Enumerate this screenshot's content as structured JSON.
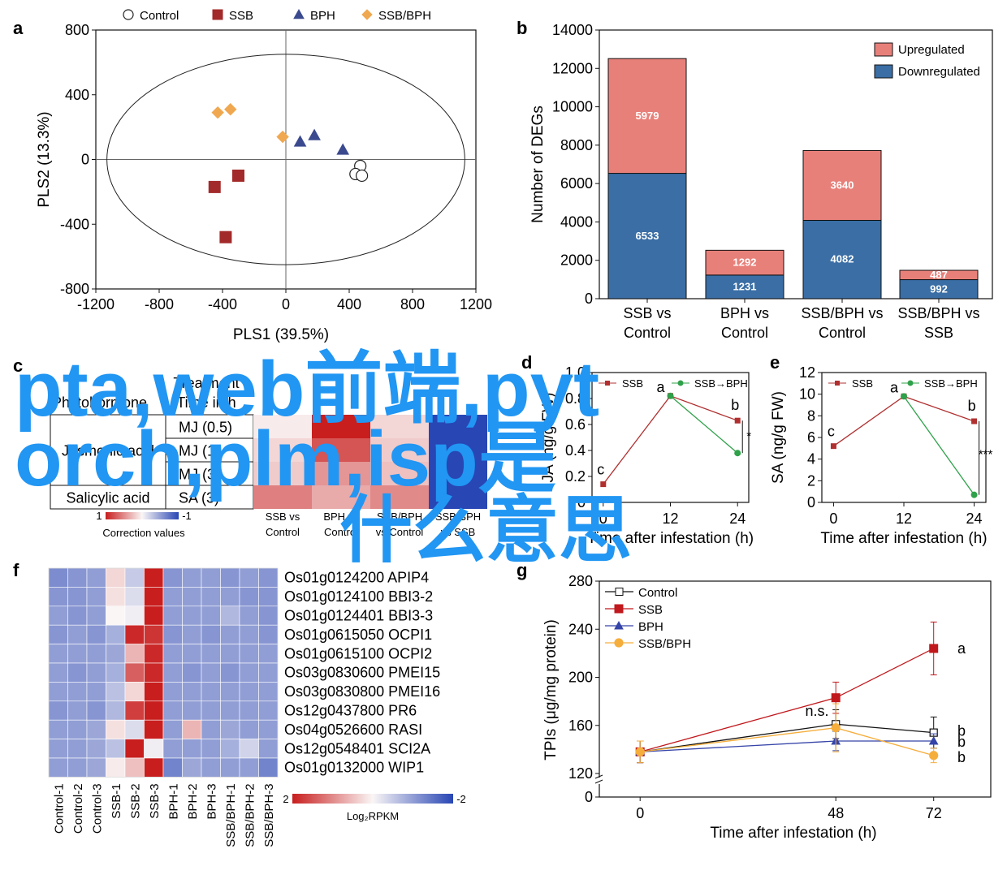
{
  "watermark": {
    "line1": "pta,web前端,pyt",
    "line2": "orch,plm,isp是",
    "line3": "什么意思"
  },
  "chart_data": [
    {
      "panel": "a",
      "type": "scatter",
      "xlabel": "PLS1 (39.5%)",
      "ylabel": "PLS2 (13.3%)",
      "xlim": [
        -1200,
        1200
      ],
      "ylim": [
        -800,
        800
      ],
      "xticks": [
        "-1200",
        "-800",
        "-400",
        "0",
        "400",
        "800",
        "1200"
      ],
      "yticks": [
        "800",
        "400",
        "0",
        "-400",
        "-800"
      ],
      "legend": [
        "Control",
        "SSB",
        "BPH",
        "SSB/BPH"
      ],
      "legend_position": "top",
      "colors": {
        "Control": "#ffffff",
        "SSB": "#a32a2a",
        "BPH": "#3b4a8f",
        "SSB/BPH": "#f0a850"
      },
      "series": [
        {
          "name": "Control",
          "marker": "circle",
          "points": [
            [
              470,
              -40
            ],
            [
              440,
              -90
            ],
            [
              480,
              -100
            ]
          ]
        },
        {
          "name": "SSB",
          "marker": "square",
          "points": [
            [
              -450,
              -170
            ],
            [
              -300,
              -100
            ],
            [
              -380,
              -480
            ]
          ]
        },
        {
          "name": "BPH",
          "marker": "triangle",
          "points": [
            [
              90,
              110
            ],
            [
              180,
              150
            ],
            [
              360,
              60
            ]
          ]
        },
        {
          "name": "SSB/BPH",
          "marker": "diamond",
          "points": [
            [
              -430,
              290
            ],
            [
              -350,
              310
            ],
            [
              -20,
              140
            ]
          ]
        }
      ]
    },
    {
      "panel": "b",
      "type": "bar",
      "stacked": true,
      "ylabel": "Number of DEGs",
      "ylim": [
        0,
        14000
      ],
      "yticks": [
        "0",
        "2000",
        "4000",
        "6000",
        "8000",
        "10000",
        "12000",
        "14000"
      ],
      "categories": [
        [
          "SSB vs",
          "Control"
        ],
        [
          "BPH vs",
          "Control"
        ],
        [
          "SSB/BPH vs",
          "Control"
        ],
        [
          "SSB/BPH vs",
          "SSB"
        ]
      ],
      "legend_position": "top-right",
      "series": [
        {
          "name": "Downregulated",
          "color": "#3a6ea5",
          "values": [
            6533,
            1231,
            4082,
            992
          ],
          "labels": [
            "6533",
            "1231",
            "4082",
            "992"
          ]
        },
        {
          "name": "Upregulated",
          "color": "#e8807a",
          "values": [
            5979,
            1292,
            3640,
            487
          ],
          "labels": [
            "5979",
            "1292",
            "3640",
            "487"
          ]
        }
      ]
    },
    {
      "panel": "c",
      "type": "heatmap",
      "header_col1": "Phytohormone",
      "header_col2": [
        "Treatment",
        "Time in h"
      ],
      "rows": [
        {
          "hormone": "Jasmonic acid",
          "name": "MJ (0.5)"
        },
        {
          "hormone": "",
          "name": "MJ (1)"
        },
        {
          "hormone": "",
          "name": "MJ (3)"
        },
        {
          "hormone": "Salicylic acid",
          "name": "SA (3)"
        }
      ],
      "columns": [
        [
          "SSB vs",
          "Control"
        ],
        [
          "BPH vs",
          "Control"
        ],
        [
          "SSB/BPH",
          "vs Control"
        ],
        [
          "SSB/BPH",
          "vs SSB"
        ]
      ],
      "values": [
        [
          0.05,
          1.0,
          0.15,
          -1.0
        ],
        [
          0.15,
          0.75,
          0.2,
          -1.0
        ],
        [
          0.2,
          0.45,
          0.25,
          -1.0
        ],
        [
          0.55,
          0.35,
          0.5,
          -1.0
        ]
      ],
      "colorbar": {
        "min_label": "1",
        "max_label": "-1",
        "title": "Correction values"
      }
    },
    {
      "panel": "d",
      "type": "line",
      "ylabel": "JA (ng/g FW)",
      "xlabel": "Time after infestation (h)",
      "xticks": [
        "0",
        "12",
        "24"
      ],
      "yticks": [
        "0",
        "0.2",
        "0.4",
        "0.6",
        "0.8",
        "1.0"
      ],
      "ylim": [
        0,
        1.0
      ],
      "legend": [
        "SSB",
        "SSB→BPH"
      ],
      "series": [
        {
          "name": "SSB",
          "color": "#b03030",
          "x": [
            0,
            12,
            24
          ],
          "y": [
            0.14,
            0.82,
            0.63
          ]
        },
        {
          "name": "SSB→BPH",
          "color": "#2fa14a",
          "x": [
            12,
            24
          ],
          "y": [
            0.82,
            0.38
          ]
        }
      ],
      "letters": [
        "c",
        "a",
        "b"
      ],
      "significance": "*"
    },
    {
      "panel": "e",
      "type": "line",
      "ylabel": "SA (ng/g FW)",
      "xlabel": "Time after infestation (h)",
      "xticks": [
        "0",
        "12",
        "24"
      ],
      "yticks": [
        "0",
        "2",
        "4",
        "6",
        "8",
        "10",
        "12"
      ],
      "ylim": [
        0,
        12
      ],
      "legend": [
        "SSB",
        "SSB→BPH"
      ],
      "series": [
        {
          "name": "SSB",
          "color": "#b03030",
          "x": [
            0,
            12,
            24
          ],
          "y": [
            5.2,
            9.8,
            7.5
          ]
        },
        {
          "name": "SSB→BPH",
          "color": "#2fa14a",
          "x": [
            12,
            24
          ],
          "y": [
            9.8,
            0.7
          ]
        }
      ],
      "letters": [
        "c",
        "a",
        "b"
      ],
      "significance": "***"
    },
    {
      "panel": "f",
      "type": "heatmap",
      "genes": [
        "Os01g0124200 APIP4",
        "Os01g0124100 BBI3-2",
        "Os01g0124401 BBI3-3",
        "Os01g0615050 OCPI1",
        "Os01g0615100 OCPI2",
        "Os03g0830600 PMEI15",
        "Os03g0830800 PMEI16",
        "Os12g0437800 PR6",
        "Os04g0526600 RASI",
        "Os12g0548401 SCI2A",
        "Os01g0132000 WIP1"
      ],
      "samples": [
        "Control-1",
        "Control-2",
        "Control-3",
        "SSB-1",
        "SSB-2",
        "SSB-3",
        "BPH-1",
        "BPH-2",
        "BPH-3",
        "SSB/BPH-1",
        "SSB/BPH-2",
        "SSB/BPH-3"
      ],
      "values": [
        [
          -1.2,
          -1.1,
          -1.0,
          0.3,
          -0.5,
          2.0,
          -1.1,
          -1.0,
          -1.0,
          -1.1,
          -1.0,
          -1.1
        ],
        [
          -1.1,
          -1.1,
          -1.0,
          0.2,
          -0.3,
          2.0,
          -1.0,
          -1.0,
          -1.0,
          -1.0,
          -1.1,
          -1.1
        ],
        [
          -1.0,
          -1.1,
          -1.0,
          0.0,
          -0.1,
          2.0,
          -1.0,
          -1.0,
          -1.0,
          -0.7,
          -1.0,
          -1.1
        ],
        [
          -1.1,
          -1.0,
          -1.1,
          -0.8,
          1.9,
          1.8,
          -1.1,
          -1.0,
          -1.1,
          -1.0,
          -1.0,
          -1.1
        ],
        [
          -1.0,
          -1.0,
          -1.0,
          -0.9,
          0.6,
          1.9,
          -1.0,
          -1.0,
          -1.0,
          -1.0,
          -1.0,
          -1.0
        ],
        [
          -1.0,
          -1.1,
          -1.0,
          -0.8,
          1.4,
          1.9,
          -1.0,
          -1.1,
          -1.0,
          -1.1,
          -1.0,
          -1.0
        ],
        [
          -1.0,
          -1.0,
          -1.0,
          -0.6,
          0.3,
          2.0,
          -1.0,
          -1.0,
          -1.0,
          -1.0,
          -1.0,
          -1.0
        ],
        [
          -1.1,
          -1.0,
          -1.1,
          -0.7,
          1.7,
          2.0,
          -1.0,
          -1.0,
          -1.0,
          -1.0,
          -1.0,
          -1.0
        ],
        [
          -1.0,
          -1.0,
          -0.9,
          0.2,
          -0.3,
          2.0,
          -1.0,
          0.6,
          -1.0,
          -0.9,
          -1.0,
          -1.0
        ],
        [
          -1.0,
          -1.0,
          -0.9,
          -0.6,
          2.0,
          -0.1,
          -1.0,
          -1.0,
          -1.0,
          -0.8,
          -0.4,
          -1.0
        ],
        [
          -1.0,
          -1.0,
          -0.9,
          0.1,
          0.5,
          2.0,
          -1.3,
          -0.9,
          -1.0,
          -1.0,
          -1.0,
          -1.3
        ]
      ],
      "colorbar": {
        "min_label": "2",
        "max_label": "-2",
        "title": "Log₂RPKM"
      }
    },
    {
      "panel": "g",
      "type": "line",
      "ylabel": "TPIs (μg/mg protein)",
      "xlabel": "Time after infestation (h)",
      "xticks": [
        "0",
        "48",
        "72"
      ],
      "yticks": [
        "0",
        "120",
        "160",
        "200",
        "240",
        "280"
      ],
      "ylim": [
        120,
        280
      ],
      "axis_break": true,
      "legend": [
        "Control",
        "SSB",
        "BPH",
        "SSB/BPH"
      ],
      "legend_position": "top-left",
      "series": [
        {
          "name": "Control",
          "color": "#111111",
          "x": [
            0,
            48,
            72
          ],
          "y": [
            138,
            161,
            154
          ],
          "err": [
            9,
            12,
            13
          ]
        },
        {
          "name": "SSB",
          "color": "#c0181c",
          "x": [
            0,
            48,
            72
          ],
          "y": [
            138,
            183,
            224
          ],
          "err": [
            9,
            13,
            22
          ]
        },
        {
          "name": "BPH",
          "color": "#3544a8",
          "x": [
            0,
            48,
            72
          ],
          "y": [
            138,
            147,
            147
          ],
          "err": [
            9,
            8,
            6
          ]
        },
        {
          "name": "SSB/BPH",
          "color": "#f5ae3c",
          "x": [
            0,
            48,
            72
          ],
          "y": [
            138,
            158,
            135
          ],
          "err": [
            9,
            20,
            6
          ]
        }
      ],
      "annotations": [
        "n.s.",
        "a",
        "b",
        "b",
        "b"
      ]
    }
  ]
}
